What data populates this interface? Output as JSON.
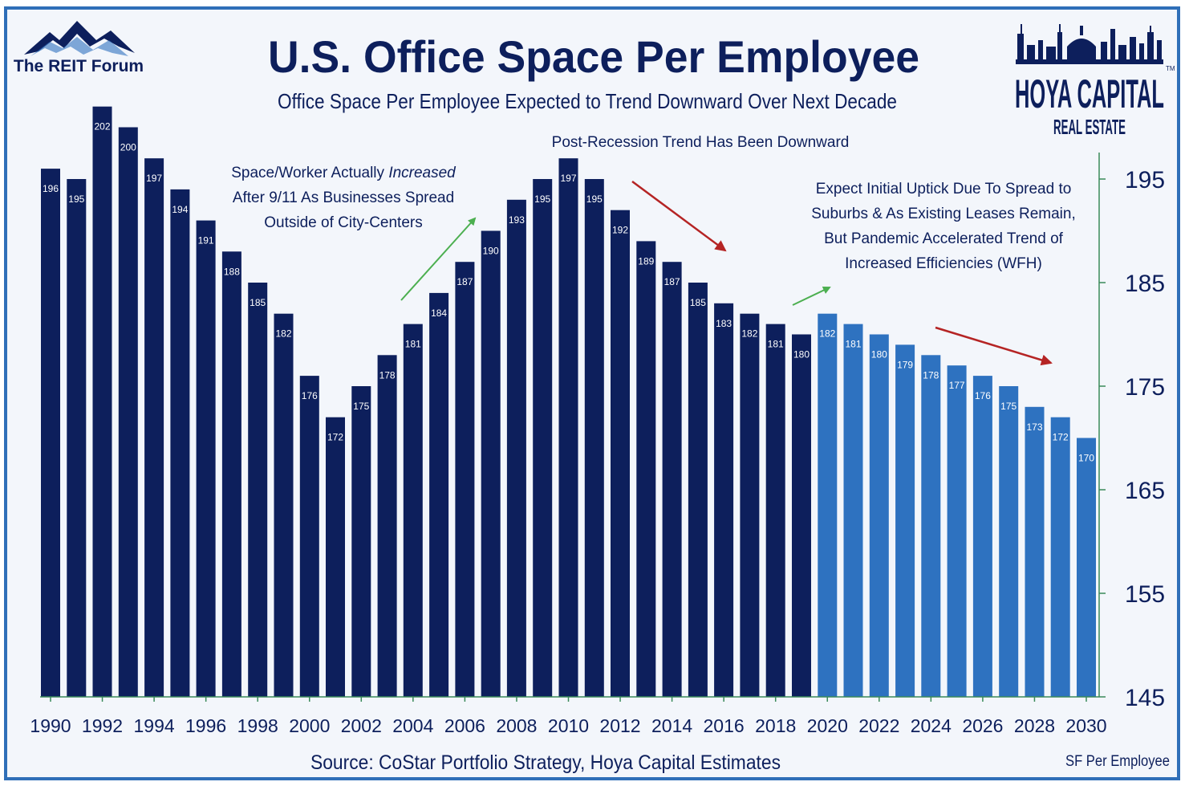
{
  "colors": {
    "background": "#f3f6fb",
    "border": "#2f6fb8",
    "historical_bar": "#0d1f5c",
    "forecast_bar": "#2e72c0",
    "title": "#0d1f5c",
    "arrow_up": "#4caf50",
    "arrow_down": "#b52424",
    "axis": "#3a8a5a"
  },
  "logos": {
    "left_text": "The REIT Forum",
    "right_line1": "HOYA CAPITAL",
    "right_line2": "REAL ESTATE",
    "right_tm": "TM"
  },
  "footer": {
    "source": "Source: CoStar Portfolio Strategy, Hoya Capital Estimates",
    "unit": "SF Per Employee"
  },
  "chart_data": {
    "type": "bar",
    "title": "U.S. Office Space Per Employee",
    "subtitle": "Office Space Per Employee Expected to Trend Downward Over Next Decade",
    "xlabel": "",
    "ylabel": "",
    "ylim": [
      145,
      199
    ],
    "y_ticks": [
      145,
      155,
      165,
      175,
      185,
      195
    ],
    "y_axis_side": "right",
    "grid": false,
    "x_tick_labels": [
      "1990",
      "1992",
      "1994",
      "1996",
      "1998",
      "2000",
      "2002",
      "2004",
      "2006",
      "2008",
      "2010",
      "2012",
      "2014",
      "2016",
      "2018",
      "2020",
      "2022",
      "2024",
      "2026",
      "2028",
      "2030"
    ],
    "categories": [
      "1990",
      "1991",
      "1992",
      "1993",
      "1994",
      "1995",
      "1996",
      "1997",
      "1998",
      "1999",
      "2000",
      "2001",
      "2002",
      "2003",
      "2004",
      "2005",
      "2006",
      "2007",
      "2008",
      "2009",
      "2010",
      "2011",
      "2012",
      "2013",
      "2014",
      "2015",
      "2016",
      "2017",
      "2018",
      "2019",
      "2020",
      "2021",
      "2022",
      "2023",
      "2024",
      "2025",
      "2026",
      "2027",
      "2028",
      "2029",
      "2030"
    ],
    "values": [
      196,
      195,
      202,
      200,
      197,
      194,
      191,
      188,
      185,
      182,
      176,
      172,
      175,
      178,
      181,
      184,
      187,
      190,
      193,
      195,
      197,
      195,
      192,
      189,
      187,
      185,
      183,
      182,
      181,
      180,
      182,
      181,
      180,
      179,
      178,
      177,
      176,
      175,
      173,
      172,
      170
    ],
    "forecast_from": "2020",
    "annotations": [
      {
        "id": "a1",
        "lines": [
          [
            "Space/Worker Actually ",
            "Increased"
          ],
          [
            "After 9/11 As Businesses Spread"
          ],
          [
            "Outside of City-Centers"
          ]
        ]
      },
      {
        "id": "a2",
        "lines": [
          [
            "Post-Recession Trend Has Been Downward"
          ]
        ]
      },
      {
        "id": "a3",
        "lines": [
          [
            "Expect Initial Uptick Due To Spread to"
          ],
          [
            "Suburbs & As Existing Leases Remain,"
          ],
          [
            "But Pandemic Accelerated Trend of"
          ],
          [
            "Increased Efficiencies (WFH)"
          ]
        ]
      }
    ]
  }
}
